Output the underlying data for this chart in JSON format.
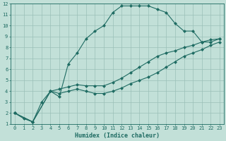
{
  "xlabel": "Humidex (Indice chaleur)",
  "xlim": [
    -0.5,
    23.5
  ],
  "ylim": [
    1,
    12
  ],
  "xticks": [
    0,
    1,
    2,
    3,
    4,
    5,
    6,
    7,
    8,
    9,
    10,
    11,
    12,
    13,
    14,
    15,
    16,
    17,
    18,
    19,
    20,
    21,
    22,
    23
  ],
  "yticks": [
    1,
    2,
    3,
    4,
    5,
    6,
    7,
    8,
    9,
    10,
    11,
    12
  ],
  "bg_color": "#c2e0d8",
  "grid_color": "#9abfb8",
  "line_color": "#1e6b62",
  "line1_x": [
    0,
    1,
    2,
    3,
    4,
    5,
    6,
    7,
    8,
    9,
    10,
    11,
    12,
    13,
    14,
    15,
    16,
    17,
    18,
    19,
    20,
    21,
    22,
    23
  ],
  "line1_y": [
    2.0,
    1.5,
    1.2,
    3.0,
    4.0,
    3.5,
    6.5,
    7.5,
    8.8,
    9.5,
    10.0,
    11.2,
    11.8,
    11.8,
    11.8,
    11.8,
    11.5,
    11.2,
    10.2,
    9.5,
    9.5,
    8.5,
    8.5,
    8.8
  ],
  "line2_x": [
    0,
    2,
    4,
    5,
    6,
    7,
    8,
    9,
    10,
    11,
    12,
    13,
    14,
    15,
    16,
    17,
    18,
    19,
    20,
    21,
    22,
    23
  ],
  "line2_y": [
    2.0,
    1.2,
    4.0,
    4.2,
    4.4,
    4.6,
    4.5,
    4.5,
    4.5,
    4.8,
    5.2,
    5.7,
    6.2,
    6.7,
    7.2,
    7.5,
    7.7,
    8.0,
    8.2,
    8.5,
    8.7,
    8.8
  ],
  "line3_x": [
    0,
    2,
    4,
    5,
    6,
    7,
    8,
    9,
    10,
    11,
    12,
    13,
    14,
    15,
    16,
    17,
    18,
    19,
    20,
    21,
    22,
    23
  ],
  "line3_y": [
    2.0,
    1.2,
    4.0,
    3.8,
    4.0,
    4.2,
    4.0,
    3.8,
    3.8,
    4.0,
    4.3,
    4.7,
    5.0,
    5.3,
    5.7,
    6.2,
    6.7,
    7.2,
    7.5,
    7.8,
    8.2,
    8.5
  ]
}
